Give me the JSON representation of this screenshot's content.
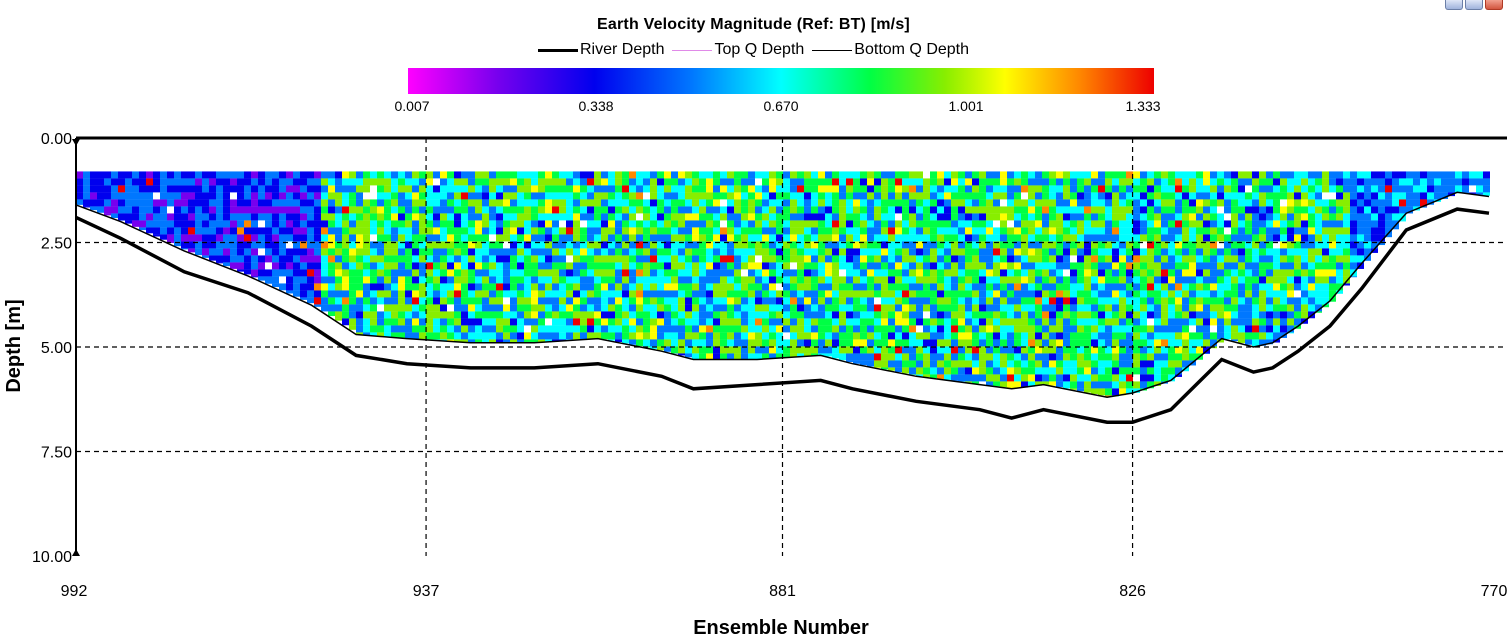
{
  "window": {
    "buttons": [
      "minimize",
      "maximize",
      "close"
    ]
  },
  "chart_data": {
    "type": "heatmap",
    "title": "Earth Velocity Magnitude (Ref: BT) [m/s]",
    "xlabel": "Ensemble Number",
    "ylabel": "Depth [m]",
    "x_ticks": [
      "992",
      "937",
      "881",
      "826",
      "770"
    ],
    "y_ticks": [
      "0.00",
      "2.50",
      "5.00",
      "7.50",
      "10.00"
    ],
    "xlim": [
      992,
      770
    ],
    "ylim": [
      0,
      10
    ],
    "x_reversed": true,
    "y_inverted": true,
    "grid": true,
    "legend": {
      "placement": "top-center",
      "entries": [
        "River Depth",
        "Top Q Depth",
        "Bottom Q Depth"
      ]
    },
    "colorbar": {
      "ticks": [
        "0.007",
        "0.338",
        "0.670",
        "1.001",
        "1.333"
      ],
      "min": 0.007,
      "max": 1.333,
      "colors": [
        "#ff00ff",
        "#7700ee",
        "#0000ee",
        "#0077ff",
        "#00ffff",
        "#00ff44",
        "#88ee00",
        "#ffff00",
        "#ff8800",
        "#ee0000"
      ]
    },
    "series": [
      {
        "name": "River Depth",
        "color": "#000000",
        "x": [
          992,
          985,
          975,
          965,
          955,
          948,
          940,
          930,
          920,
          910,
          900,
          895,
          885,
          875,
          870,
          860,
          850,
          845,
          840,
          830,
          826,
          820,
          812,
          807,
          804,
          800,
          795,
          790,
          783,
          775,
          770
        ],
        "y": [
          1.9,
          2.4,
          3.2,
          3.7,
          4.5,
          5.2,
          5.4,
          5.5,
          5.5,
          5.4,
          5.7,
          6.0,
          5.9,
          5.8,
          6.0,
          6.3,
          6.5,
          6.7,
          6.5,
          6.8,
          6.8,
          6.5,
          5.3,
          5.6,
          5.5,
          5.1,
          4.5,
          3.6,
          2.2,
          1.7,
          1.8
        ]
      },
      {
        "name": "Top Q Depth",
        "color": "#e08ae8",
        "x": [
          992,
          770
        ],
        "y": [
          0.8,
          0.8
        ]
      },
      {
        "name": "Bottom Q Depth",
        "color": "#000000",
        "x": [
          992,
          985,
          975,
          965,
          955,
          948,
          940,
          930,
          920,
          910,
          900,
          895,
          885,
          875,
          870,
          860,
          850,
          845,
          840,
          830,
          826,
          820,
          812,
          807,
          804,
          800,
          795,
          790,
          783,
          775,
          770
        ],
        "y": [
          1.6,
          2.0,
          2.7,
          3.3,
          4.0,
          4.7,
          4.8,
          4.9,
          4.9,
          4.8,
          5.1,
          5.3,
          5.3,
          5.2,
          5.4,
          5.7,
          5.9,
          6.0,
          5.9,
          6.2,
          6.1,
          5.8,
          4.8,
          5.0,
          4.9,
          4.5,
          3.9,
          3.0,
          1.8,
          1.3,
          1.4
        ]
      }
    ]
  }
}
